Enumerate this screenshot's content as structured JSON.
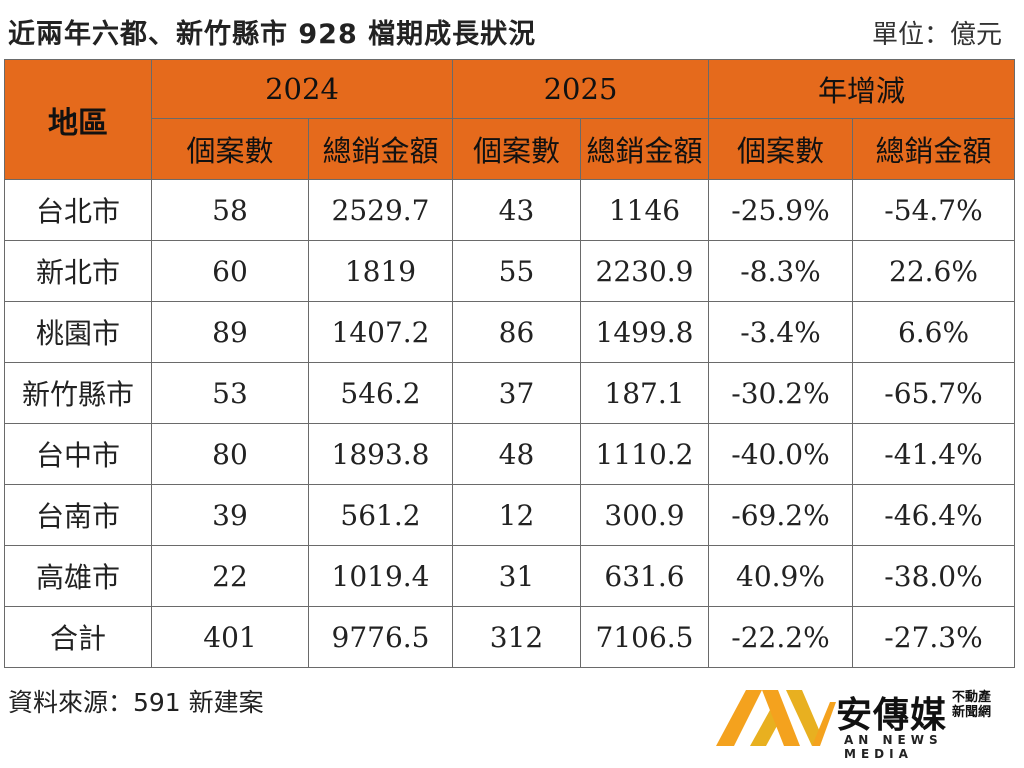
{
  "title": "近兩年六都、新竹縣市 928 檔期成長狀況",
  "unit": "單位：億元",
  "table": {
    "region_header": "地區",
    "groups": [
      "2024",
      "2025",
      "年增減"
    ],
    "subheaders": [
      "個案數",
      "總銷金額",
      "個案數",
      "總銷金額",
      "個案數",
      "總銷金額"
    ],
    "rows": [
      {
        "region": "台北市",
        "cells": [
          "58",
          "2529.7",
          "43",
          "1146",
          "-25.9%",
          "-54.7%"
        ]
      },
      {
        "region": "新北市",
        "cells": [
          "60",
          "1819",
          "55",
          "2230.9",
          "-8.3%",
          "22.6%"
        ]
      },
      {
        "region": "桃園市",
        "cells": [
          "89",
          "1407.2",
          "86",
          "1499.8",
          "-3.4%",
          "6.6%"
        ]
      },
      {
        "region": "新竹縣市",
        "cells": [
          "53",
          "546.2",
          "37",
          "187.1",
          "-30.2%",
          "-65.7%"
        ]
      },
      {
        "region": "台中市",
        "cells": [
          "80",
          "1893.8",
          "48",
          "1110.2",
          "-40.0%",
          "-41.4%"
        ]
      },
      {
        "region": "台南市",
        "cells": [
          "39",
          "561.2",
          "12",
          "300.9",
          "-69.2%",
          "-46.4%"
        ]
      },
      {
        "region": "高雄市",
        "cells": [
          "22",
          "1019.4",
          "31",
          "631.6",
          "40.9%",
          "-38.0%"
        ]
      },
      {
        "region": "合計",
        "cells": [
          "401",
          "9776.5",
          "312",
          "7106.5",
          "-22.2%",
          "-27.3%"
        ]
      }
    ]
  },
  "source": "資料來源：591 新建案",
  "logo": {
    "name": "安傳媒",
    "sub_line1": "不動產",
    "sub_line2": "新聞網",
    "english": "AN NEWS MEDIA",
    "colors": {
      "orange": "#f4a21e",
      "gold": "#e8b020"
    }
  },
  "colors": {
    "header_bg": "#e56a1c",
    "border": "#6a6a6a"
  }
}
